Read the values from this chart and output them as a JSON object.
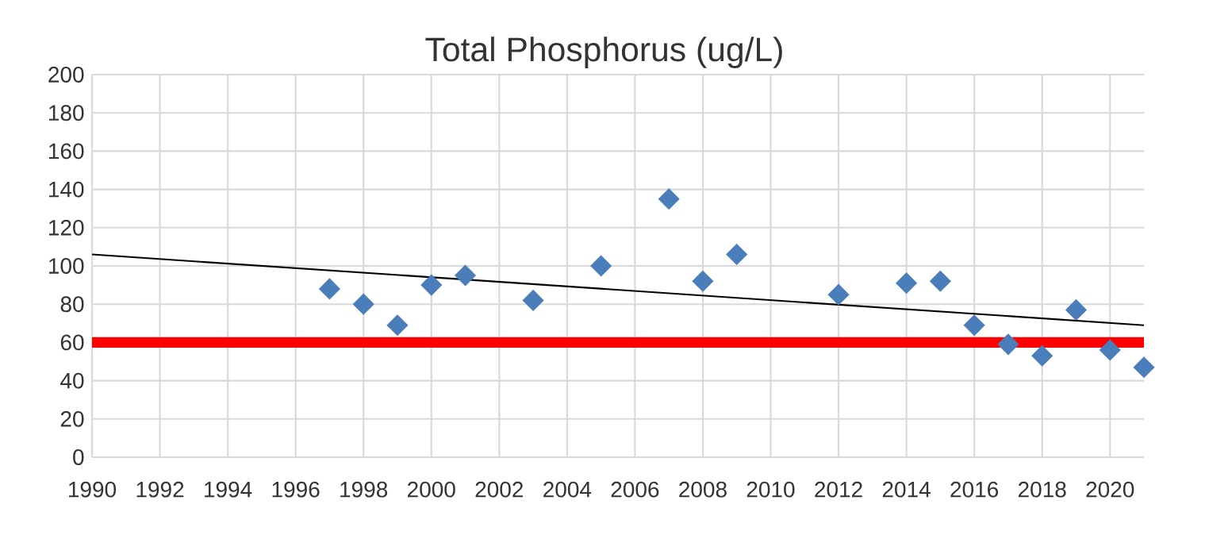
{
  "chart_data": {
    "type": "scatter",
    "title": "Total Phosphorus (ug/L)",
    "xlim": [
      1990,
      2021
    ],
    "xticks": [
      1990,
      1992,
      1994,
      1996,
      1998,
      2000,
      2002,
      2004,
      2006,
      2008,
      2010,
      2012,
      2014,
      2016,
      2018,
      2020
    ],
    "ylim": [
      0,
      200
    ],
    "yticks": [
      0,
      20,
      40,
      60,
      80,
      100,
      120,
      140,
      160,
      180,
      200
    ],
    "grid": true,
    "marker": "diamond",
    "series": [
      {
        "color": "#4a7ebb",
        "x": [
          1997,
          1998,
          1999,
          2000,
          2001,
          2003,
          2005,
          2007,
          2008,
          2009,
          2012,
          2014,
          2015,
          2016,
          2017,
          2018,
          2019,
          2020,
          2021
        ],
        "values": [
          88,
          80,
          69,
          90,
          95,
          82,
          100,
          135,
          92,
          106,
          85,
          91,
          92,
          69,
          59,
          53,
          77,
          56,
          47
        ]
      },
      {
        "type": "line",
        "color": "#000000",
        "marker": "none",
        "line_style": "solid",
        "x": [
          1990,
          2021
        ],
        "values": [
          106,
          69
        ]
      }
    ],
    "ref_lines": [
      {
        "axis": "y",
        "value": 60,
        "color": "#ff0000"
      }
    ]
  }
}
